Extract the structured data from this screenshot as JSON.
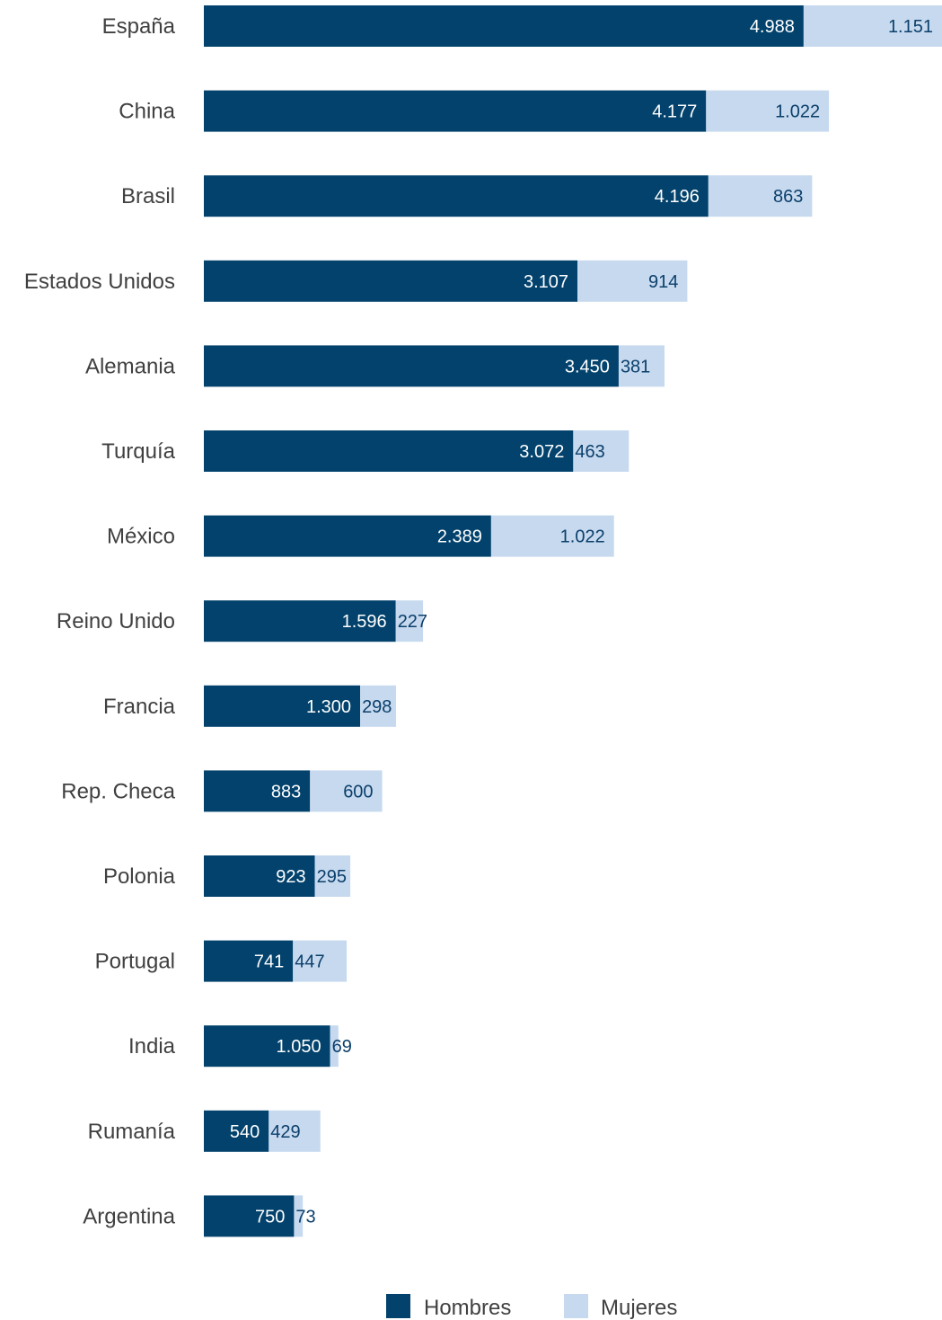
{
  "colors": {
    "hombres": "#02426c",
    "mujeres": "#c6d9ee"
  },
  "chart_data": {
    "type": "bar",
    "orientation": "horizontal",
    "stacked": true,
    "categories": [
      "España",
      "China",
      "Brasil",
      "Estados Unidos",
      "Alemania",
      "Turquía",
      "México",
      "Reino Unido",
      "Francia",
      "Rep. Checa",
      "Polonia",
      "Portugal",
      "India",
      "Rumanía",
      "Argentina"
    ],
    "series": [
      {
        "name": "Hombres",
        "values": [
          4988,
          4177,
          4196,
          3107,
          3450,
          3072,
          2389,
          1596,
          1300,
          883,
          923,
          741,
          1050,
          540,
          750
        ],
        "labels": [
          "4.988",
          "4.177",
          "4.196",
          "3.107",
          "3.450",
          "3.072",
          "2.389",
          "1.596",
          "1.300",
          "883",
          "923",
          "741",
          "1.050",
          "540",
          "750"
        ]
      },
      {
        "name": "Mujeres",
        "values": [
          1151,
          1022,
          863,
          914,
          381,
          463,
          1022,
          227,
          298,
          600,
          295,
          447,
          69,
          429,
          73
        ],
        "labels": [
          "1.151",
          "1.022",
          "863",
          "914",
          "381",
          "463",
          "1.022",
          "227",
          "298",
          "600",
          "295",
          "447",
          "69",
          "429",
          "73"
        ]
      }
    ],
    "xlim": [
      0,
      6139
    ],
    "grid": false,
    "legend": "bottom"
  }
}
